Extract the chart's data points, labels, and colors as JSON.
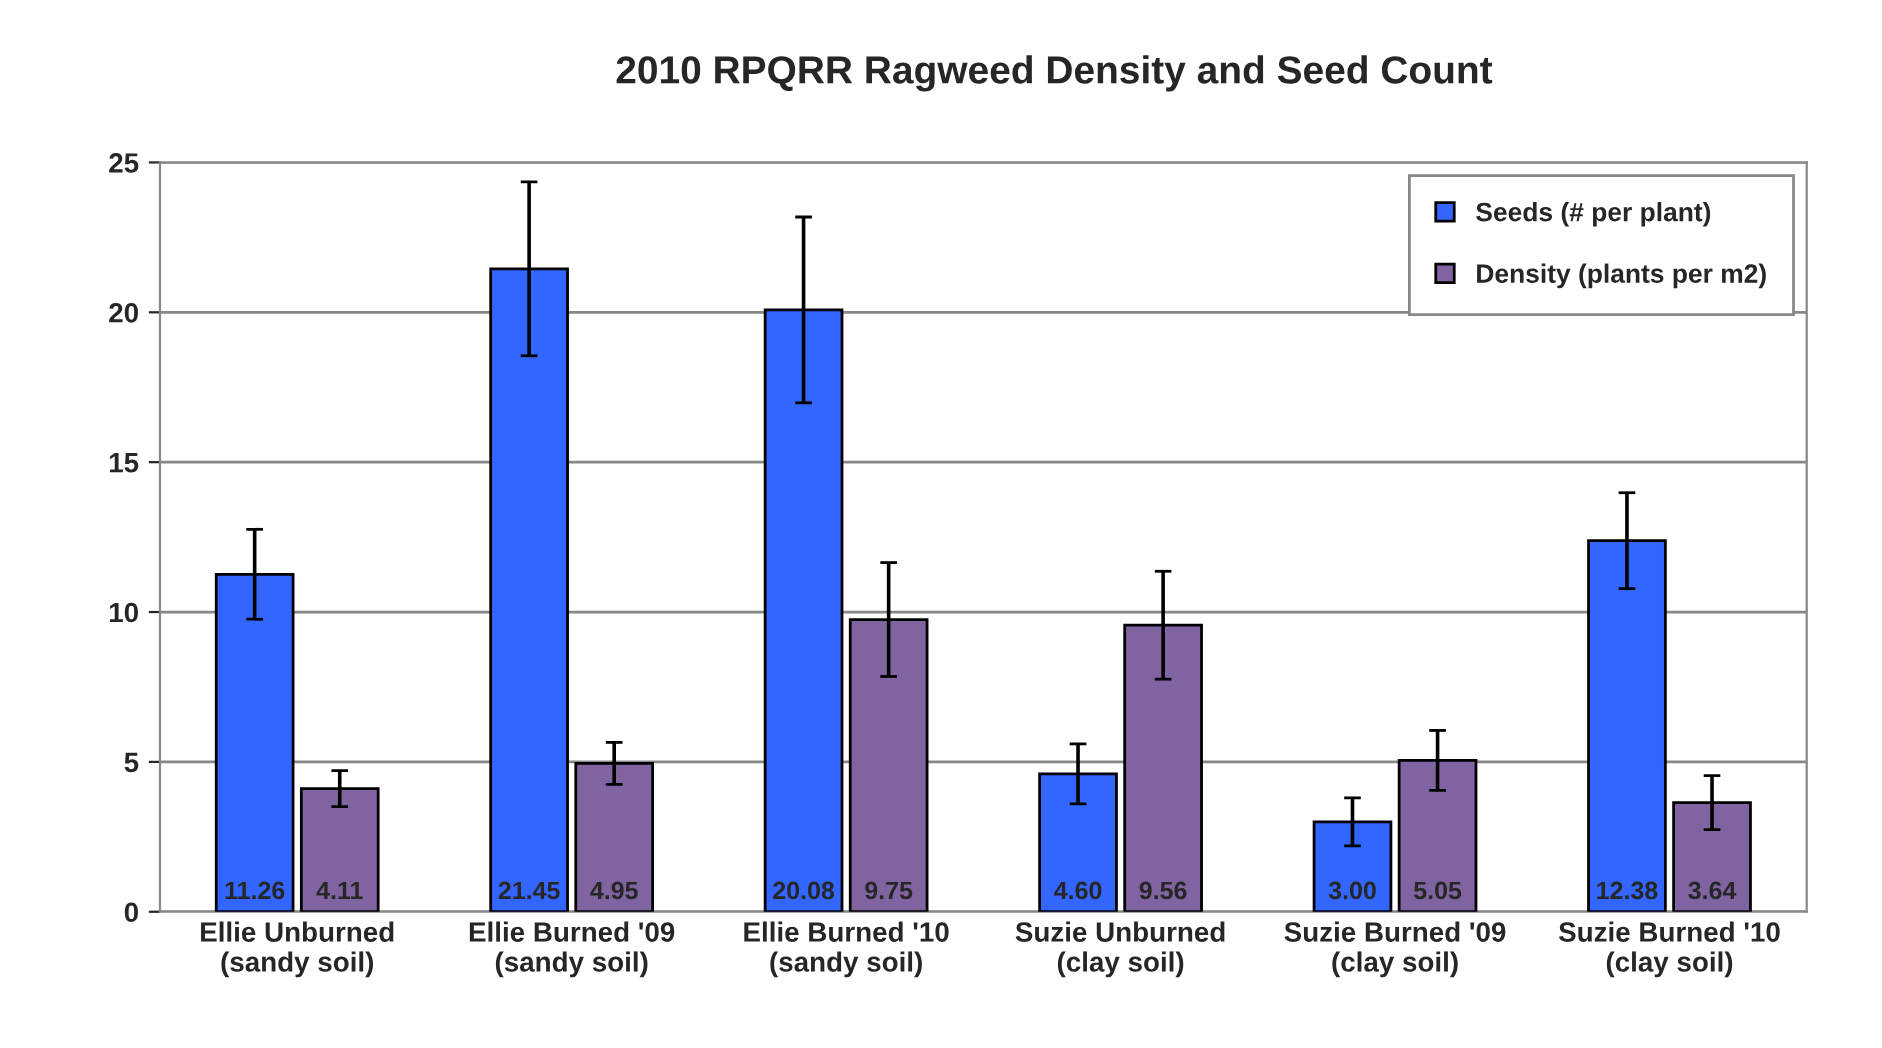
{
  "chart_data": {
    "type": "bar",
    "title": "2010 RPQRR Ragweed Density and Seed Count",
    "categories": [
      "Ellie Unburned\n(sandy soil)",
      "Ellie Burned '09\n(sandy soil)",
      "Ellie Burned '10\n(sandy soil)",
      "Suzie Unburned\n(clay soil)",
      "Suzie Burned '09\n(clay soil)",
      "Suzie Burned '10\n(clay soil)"
    ],
    "series": [
      {
        "name": "Seeds (# per plant)",
        "color": "#3366ff",
        "values": [
          11.26,
          21.45,
          20.08,
          4.6,
          3.0,
          12.38
        ],
        "errors": [
          1.5,
          2.9,
          3.1,
          1.0,
          0.8,
          1.6
        ],
        "value_labels": [
          "11.26",
          "21.45",
          "20.08",
          "4.60",
          "3.00",
          "12.38"
        ]
      },
      {
        "name": "Density (plants per m2)",
        "color": "#8064a2",
        "values": [
          4.11,
          4.95,
          9.75,
          9.56,
          5.05,
          3.64
        ],
        "errors": [
          0.6,
          0.7,
          1.9,
          1.8,
          1.0,
          0.9
        ],
        "value_labels": [
          "4.11",
          "4.95",
          "9.75",
          "9.56",
          "5.05",
          "3.64"
        ]
      }
    ],
    "ylim": [
      0,
      25
    ],
    "yticks": [
      0,
      5,
      10,
      15,
      20,
      25
    ],
    "grid": "y",
    "legend": "top right"
  }
}
